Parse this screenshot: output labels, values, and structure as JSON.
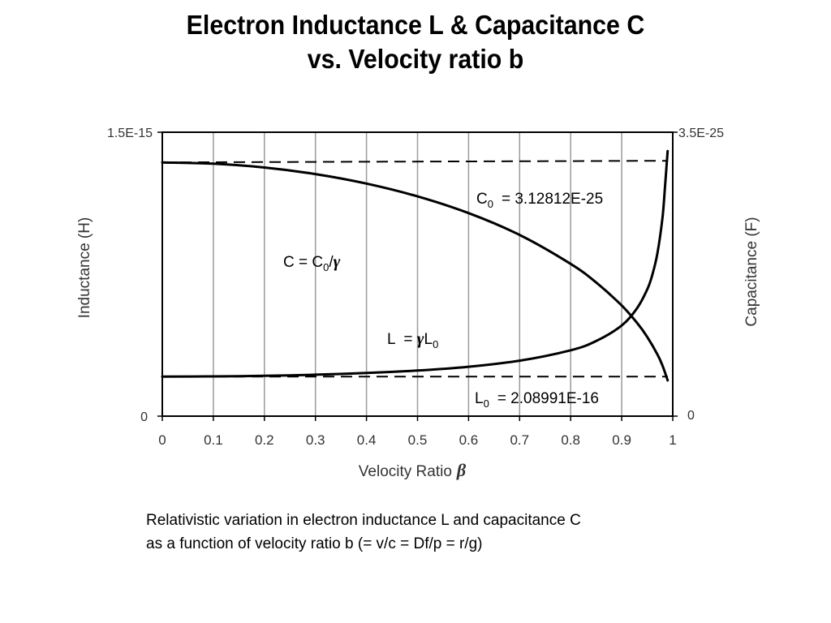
{
  "slide": {
    "title_line1": "Electron Inductance L & Capacitance C",
    "title_line2": "vs. Velocity ratio b",
    "caption_line1": "Relativistic variation in electron inductance L and capacitance C",
    "caption_line2": "as a function of velocity ratio b (= v/c = Df/p = r/g)"
  },
  "chart_data": {
    "type": "line",
    "xlabel": "Velocity Ratio",
    "xlabel_symbol": "β",
    "ylabel_left": "Inductance  (H)",
    "ylabel_right": "Capacitance  (F)",
    "xlim": [
      0,
      1
    ],
    "ylim_left": [
      0,
      1.5e-15
    ],
    "ylim_right": [
      0,
      3.5e-25
    ],
    "x_ticks": [
      "0",
      "0.1",
      "0.2",
      "0.3",
      "0.4",
      "0.5",
      "0.6",
      "0.7",
      "0.8",
      "0.9",
      "1"
    ],
    "y_left_ticks": {
      "top": "1.5E-15",
      "bottom": "0"
    },
    "y_right_ticks": {
      "top": "3.5E-25",
      "bottom": "0"
    },
    "grid": "vertical",
    "reference_lines": {
      "C0": {
        "value": 3.12812e-25,
        "axis": "right",
        "label": "C",
        "sub": "0",
        "label_value": "= 3.12812E-25"
      },
      "L0": {
        "value": 2.08991e-16,
        "axis": "left",
        "label": "L",
        "sub": "0",
        "label_value": "= 2.08991E-16"
      }
    },
    "series": [
      {
        "name": "L",
        "formula": "L = γL0",
        "axis": "left",
        "x": [
          0,
          0.1,
          0.2,
          0.3,
          0.4,
          0.5,
          0.6,
          0.7,
          0.8,
          0.85,
          0.9,
          0.93,
          0.95,
          0.96,
          0.97,
          0.98,
          0.985,
          0.99
        ],
        "y": [
          2.09e-16,
          2.1e-16,
          2.13e-16,
          2.19e-16,
          2.28e-16,
          2.41e-16,
          2.61e-16,
          2.93e-16,
          3.48e-16,
          3.97e-16,
          4.79e-16,
          5.7e-16,
          6.69e-16,
          7.46e-16,
          8.6e-16,
          1.05e-15,
          1.22e-15,
          1.4e-15
        ]
      },
      {
        "name": "C",
        "formula": "C = C0/γ",
        "axis": "right",
        "x": [
          0,
          0.1,
          0.2,
          0.3,
          0.4,
          0.5,
          0.6,
          0.7,
          0.8,
          0.85,
          0.9,
          0.93,
          0.95,
          0.97,
          0.98,
          0.99
        ],
        "y": [
          3.128e-25,
          3.112e-25,
          3.065e-25,
          2.984e-25,
          2.867e-25,
          2.709e-25,
          2.503e-25,
          2.234e-25,
          1.877e-25,
          1.648e-25,
          1.364e-25,
          1.15e-25,
          9.77e-26,
          7.61e-26,
          6.22e-26,
          4.41e-26
        ]
      }
    ],
    "annotations": {
      "C_formula": {
        "base": "C = C",
        "sub": "0",
        "tail": "/",
        "symbol": "γ"
      },
      "L_formula": {
        "base": "L  = ",
        "symbol": "γ",
        "mid": "L",
        "sub": "0"
      }
    }
  }
}
